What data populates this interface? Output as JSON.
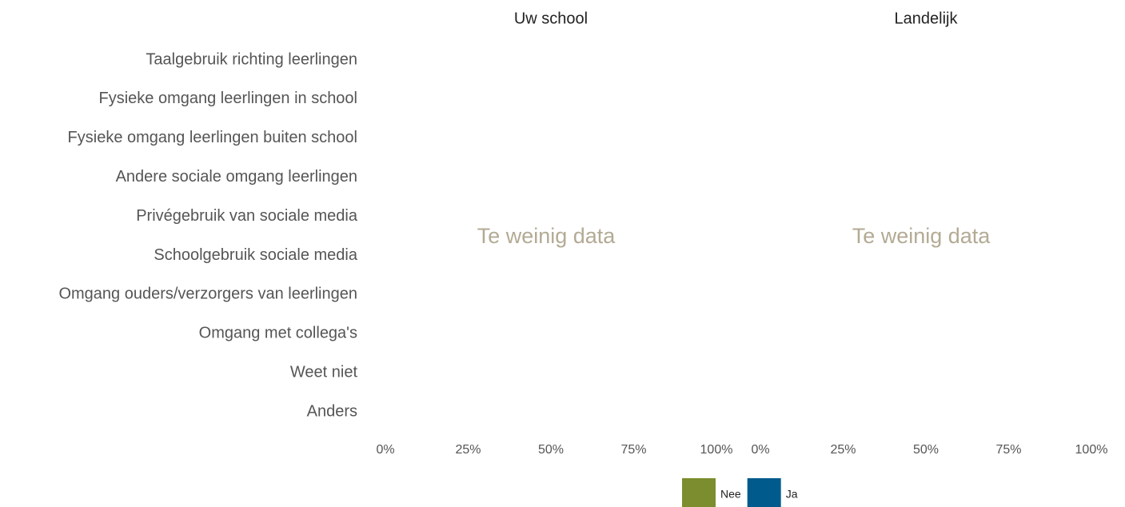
{
  "chart_data": [
    {
      "type": "bar",
      "title": "Uw school",
      "categories": [
        "Taalgebruik richting leerlingen",
        "Fysieke omgang leerlingen in school",
        "Fysieke omgang leerlingen buiten school",
        "Andere sociale omgang leerlingen",
        "Privégebruik van sociale media",
        "Schoolgebruik sociale media",
        "Omgang ouders/verzorgers van leerlingen",
        "Omgang met collega's",
        "Weet niet",
        "Anders"
      ],
      "xlim": [
        0,
        100
      ],
      "xticks": [
        {
          "value": 0,
          "label": "0%"
        },
        {
          "value": 25,
          "label": "25%"
        },
        {
          "value": 50,
          "label": "50%"
        },
        {
          "value": 75,
          "label": "75%"
        },
        {
          "value": 100,
          "label": "100%"
        }
      ],
      "annotation": "Te weinig data"
    },
    {
      "type": "bar",
      "title": "Landelijk",
      "xlim": [
        0,
        100
      ],
      "xticks": [
        {
          "value": 0,
          "label": "0%"
        },
        {
          "value": 25,
          "label": "25%"
        },
        {
          "value": 50,
          "label": "50%"
        },
        {
          "value": 75,
          "label": "75%"
        },
        {
          "value": 100,
          "label": "100%"
        }
      ],
      "annotation": "Te weinig data"
    }
  ],
  "legend": [
    {
      "name": "Nee",
      "color": "#7b8d2e"
    },
    {
      "name": "Ja",
      "color": "#005a8c"
    }
  ]
}
